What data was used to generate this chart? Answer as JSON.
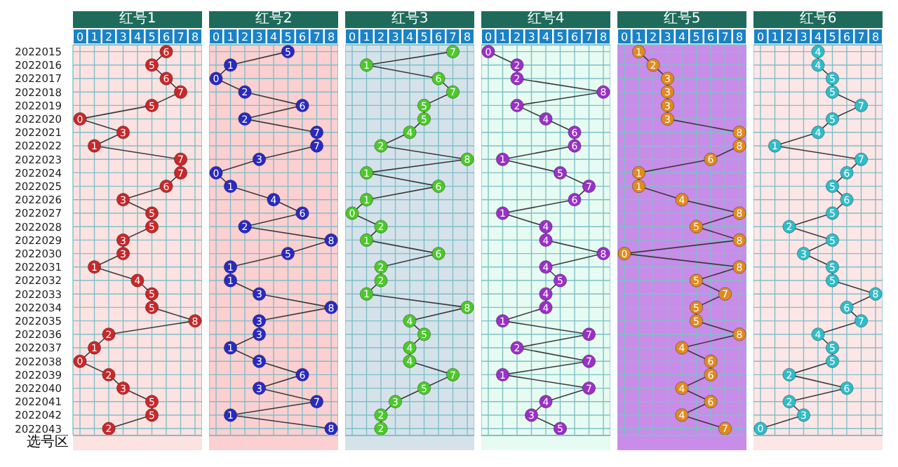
{
  "chart_data": [
    {
      "type": "line",
      "title": "红号1",
      "categories": [
        "2022015",
        "2022016",
        "2022017",
        "2022018",
        "2022019",
        "2022020",
        "2022021",
        "2022022",
        "2022023",
        "2022024",
        "2022025",
        "2022026",
        "2022027",
        "2022028",
        "2022029",
        "2022030",
        "2022031",
        "2022032",
        "2022033",
        "2022034",
        "2022035",
        "2022036",
        "2022037",
        "2022038",
        "2022039",
        "2022040",
        "2022041",
        "2022042",
        "2022043"
      ],
      "orientation": "horizontal",
      "xlim": [
        0,
        8
      ],
      "xticks": [
        0,
        1,
        2,
        3,
        4,
        5,
        6,
        7,
        8
      ],
      "grid": true,
      "marker": "circle",
      "data_labels": true,
      "annotations": [
        "选号区"
      ],
      "series": [
        {
          "color": "#c8282a",
          "values": [
            6,
            5,
            6,
            7,
            5,
            0,
            3,
            1,
            7,
            7,
            6,
            3,
            5,
            5,
            3,
            3,
            1,
            4,
            5,
            5,
            8,
            2,
            1,
            0,
            2,
            3,
            5,
            5,
            2
          ]
        }
      ]
    },
    {
      "type": "line",
      "title": "红号2",
      "categories": [
        "2022015",
        "2022016",
        "2022017",
        "2022018",
        "2022019",
        "2022020",
        "2022021",
        "2022022",
        "2022023",
        "2022024",
        "2022025",
        "2022026",
        "2022027",
        "2022028",
        "2022029",
        "2022030",
        "2022031",
        "2022032",
        "2022033",
        "2022034",
        "2022035",
        "2022036",
        "2022037",
        "2022038",
        "2022039",
        "2022040",
        "2022041",
        "2022042",
        "2022043"
      ],
      "orientation": "horizontal",
      "xlim": [
        0,
        8
      ],
      "xticks": [
        0,
        1,
        2,
        3,
        4,
        5,
        6,
        7,
        8
      ],
      "grid": true,
      "marker": "circle",
      "data_labels": true,
      "tick_labels": "x",
      "series": [
        {
          "color": "#2a2ac0",
          "values": [
            5,
            1,
            0,
            2,
            6,
            2,
            7,
            7,
            3,
            0,
            1,
            4,
            6,
            2,
            8,
            5,
            1,
            1,
            3,
            8,
            3,
            3,
            1,
            3,
            6,
            3,
            7,
            1,
            8
          ]
        }
      ]
    },
    {
      "type": "line",
      "title": "红号3",
      "categories": [
        "2022015",
        "2022016",
        "2022017",
        "2022018",
        "2022019",
        "2022020",
        "2022021",
        "2022022",
        "2022023",
        "2022024",
        "2022025",
        "2022026",
        "2022027",
        "2022028",
        "2022029",
        "2022030",
        "2022031",
        "2022032",
        "2022033",
        "2022034",
        "2022035",
        "2022036",
        "2022037",
        "2022038",
        "2022039",
        "2022040",
        "2022041",
        "2022042",
        "2022043"
      ],
      "orientation": "horizontal",
      "xlim": [
        0,
        8
      ],
      "xticks": [
        0,
        1,
        2,
        3,
        4,
        5,
        6,
        7,
        8
      ],
      "grid": true,
      "marker": "circle",
      "data_labels": true,
      "tick_labels": "x",
      "series": [
        {
          "color": "#4cc82a",
          "values": [
            7,
            1,
            6,
            7,
            5,
            5,
            4,
            2,
            8,
            1,
            6,
            1,
            0,
            2,
            1,
            6,
            2,
            2,
            1,
            8,
            4,
            5,
            4,
            4,
            7,
            5,
            3,
            2,
            2
          ]
        }
      ]
    },
    {
      "type": "line",
      "title": "红号4",
      "categories": [
        "2022015",
        "2022016",
        "2022017",
        "2022018",
        "2022019",
        "2022020",
        "2022021",
        "2022022",
        "2022023",
        "2022024",
        "2022025",
        "2022026",
        "2022027",
        "2022028",
        "2022029",
        "2022030",
        "2022031",
        "2022032",
        "2022033",
        "2022034",
        "2022035",
        "2022036",
        "2022037",
        "2022038",
        "2022039",
        "2022040",
        "2022041",
        "2022042",
        "2022043"
      ],
      "orientation": "horizontal",
      "xlim": [
        0,
        8
      ],
      "xticks": [
        0,
        1,
        2,
        3,
        4,
        5,
        6,
        7,
        8
      ],
      "grid": true,
      "marker": "circle",
      "data_labels": true,
      "tick_labels": "x",
      "series": [
        {
          "color": "#9a30c8",
          "values": [
            0,
            2,
            2,
            8,
            2,
            4,
            6,
            6,
            1,
            5,
            7,
            6,
            1,
            4,
            4,
            8,
            4,
            5,
            4,
            4,
            1,
            7,
            2,
            7,
            1,
            7,
            4,
            3,
            5
          ]
        }
      ]
    },
    {
      "type": "line",
      "title": "红号5",
      "categories": [
        "2022015",
        "2022016",
        "2022017",
        "2022018",
        "2022019",
        "2022020",
        "2022021",
        "2022022",
        "2022023",
        "2022024",
        "2022025",
        "2022026",
        "2022027",
        "2022028",
        "2022029",
        "2022030",
        "2022031",
        "2022032",
        "2022033",
        "2022034",
        "2022035",
        "2022036",
        "2022037",
        "2022038",
        "2022039",
        "2022040",
        "2022041",
        "2022042",
        "2022043"
      ],
      "orientation": "horizontal",
      "xlim": [
        0,
        8
      ],
      "xticks": [
        0,
        1,
        2,
        3,
        4,
        5,
        6,
        7,
        8
      ],
      "grid": true,
      "marker": "circle",
      "data_labels": true,
      "tick_labels": "x",
      "series": [
        {
          "color": "#e08a20",
          "values": [
            1,
            2,
            3,
            3,
            3,
            3,
            8,
            8,
            6,
            1,
            1,
            4,
            8,
            5,
            8,
            0,
            8,
            5,
            7,
            5,
            5,
            8,
            4,
            6,
            6,
            4,
            6,
            4,
            7
          ]
        }
      ]
    },
    {
      "type": "line",
      "title": "红号6",
      "categories": [
        "2022015",
        "2022016",
        "2022017",
        "2022018",
        "2022019",
        "2022020",
        "2022021",
        "2022022",
        "2022023",
        "2022024",
        "2022025",
        "2022026",
        "2022027",
        "2022028",
        "2022029",
        "2022030",
        "2022031",
        "2022032",
        "2022033",
        "2022034",
        "2022035",
        "2022036",
        "2022037",
        "2022038",
        "2022039",
        "2022040",
        "2022041",
        "2022042",
        "2022043"
      ],
      "orientation": "horizontal",
      "xlim": [
        0,
        8
      ],
      "xticks": [
        0,
        1,
        2,
        3,
        4,
        5,
        6,
        7,
        8
      ],
      "grid": true,
      "marker": "circle",
      "data_labels": true,
      "tick_labels": "x",
      "series": [
        {
          "color": "#30bcc8",
          "values": [
            4,
            4,
            5,
            5,
            7,
            5,
            4,
            1,
            7,
            6,
            5,
            6,
            5,
            2,
            5,
            3,
            5,
            5,
            8,
            6,
            7,
            4,
            5,
            5,
            2,
            6,
            2,
            3,
            0
          ]
        }
      ]
    }
  ]
}
